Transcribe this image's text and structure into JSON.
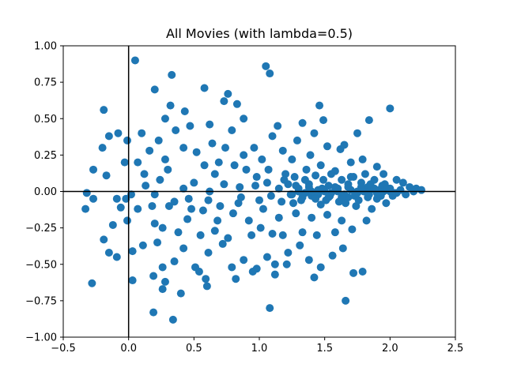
{
  "chart_data": {
    "type": "scatter",
    "title": "All Movies (with lambda=0.5)",
    "xlabel": "",
    "ylabel": "",
    "xlim": [
      -0.5,
      2.5
    ],
    "ylim": [
      -1.0,
      1.0
    ],
    "xticks": [
      "−0.5",
      "0.0",
      "0.5",
      "1.0",
      "1.5",
      "2.0",
      "2.5"
    ],
    "xtick_values": [
      -0.5,
      0.0,
      0.5,
      1.0,
      1.5,
      2.0,
      2.5
    ],
    "yticks": [
      "−1.00",
      "−0.75",
      "−0.50",
      "−0.25",
      "0.00",
      "0.25",
      "0.50",
      "0.75",
      "1.00"
    ],
    "ytick_values": [
      -1.0,
      -0.75,
      -0.5,
      -0.25,
      0.0,
      0.25,
      0.5,
      0.75,
      1.0
    ],
    "reference_lines": {
      "x": 0.0,
      "y": 0.0,
      "color": "#000000"
    },
    "grid": false,
    "marker_color": "#1f77b4",
    "series": [
      {
        "points": [
          [
            0.05,
            0.9
          ],
          [
            0.33,
            0.8
          ],
          [
            1.05,
            0.86
          ],
          [
            1.08,
            0.81
          ],
          [
            -0.19,
            0.56
          ],
          [
            0.2,
            0.7
          ],
          [
            0.58,
            0.71
          ],
          [
            0.73,
            0.62
          ],
          [
            0.76,
            0.67
          ],
          [
            0.83,
            0.6
          ],
          [
            1.46,
            0.59
          ],
          [
            2.0,
            0.57
          ],
          [
            1.84,
            0.49
          ],
          [
            1.75,
            0.4
          ],
          [
            0.32,
            0.59
          ],
          [
            0.43,
            0.55
          ],
          [
            0.28,
            0.5
          ],
          [
            0.88,
            0.5
          ],
          [
            1.14,
            0.45
          ],
          [
            1.33,
            0.47
          ],
          [
            1.49,
            0.49
          ],
          [
            -0.2,
            0.3
          ],
          [
            -0.15,
            0.38
          ],
          [
            -0.08,
            0.4
          ],
          [
            0.1,
            0.4
          ],
          [
            0.23,
            0.35
          ],
          [
            0.16,
            0.28
          ],
          [
            0.07,
            0.2
          ],
          [
            -0.03,
            0.2
          ],
          [
            -0.01,
            0.35
          ],
          [
            -0.27,
            0.15
          ],
          [
            -0.17,
            0.11
          ],
          [
            0.12,
            0.12
          ],
          [
            0.3,
            0.15
          ],
          [
            0.52,
            0.27
          ],
          [
            0.64,
            0.33
          ],
          [
            0.69,
            0.2
          ],
          [
            0.88,
            0.25
          ],
          [
            0.96,
            0.3
          ],
          [
            1.18,
            0.28
          ],
          [
            1.25,
            0.22
          ],
          [
            1.39,
            0.25
          ],
          [
            1.52,
            0.31
          ],
          [
            1.62,
            0.29
          ],
          [
            1.7,
            0.2
          ],
          [
            1.79,
            0.22
          ],
          [
            1.9,
            0.17
          ],
          [
            1.95,
            0.12
          ],
          [
            2.05,
            0.08
          ],
          [
            2.1,
            0.06
          ],
          [
            2.15,
            0.03
          ],
          [
            2.2,
            0.02
          ],
          [
            2.24,
            0.01
          ],
          [
            -0.32,
            -0.01
          ],
          [
            -0.33,
            -0.12
          ],
          [
            -0.27,
            -0.05
          ],
          [
            -0.09,
            -0.05
          ],
          [
            -0.02,
            -0.05
          ],
          [
            0.02,
            -0.02
          ],
          [
            0.13,
            0.04
          ],
          [
            0.24,
            0.08
          ],
          [
            0.42,
            0.02
          ],
          [
            0.5,
            0.06
          ],
          [
            0.62,
            0.0
          ],
          [
            0.73,
            0.05
          ],
          [
            0.85,
            0.03
          ],
          [
            0.97,
            0.04
          ],
          [
            1.06,
            0.06
          ],
          [
            1.15,
            0.02
          ],
          [
            1.22,
            0.05
          ],
          [
            1.3,
            0.02
          ],
          [
            1.38,
            0.05
          ],
          [
            1.45,
            0.01
          ],
          [
            1.53,
            0.04
          ],
          [
            1.6,
            0.02
          ],
          [
            1.68,
            0.03
          ],
          [
            1.75,
            0.0
          ],
          [
            1.83,
            0.03
          ],
          [
            1.92,
            0.01
          ],
          [
            2.0,
            0.02
          ],
          [
            -0.06,
            -0.11
          ],
          [
            -0.12,
            -0.23
          ],
          [
            -0.01,
            -0.2
          ],
          [
            0.07,
            -0.12
          ],
          [
            0.2,
            -0.22
          ],
          [
            0.31,
            -0.1
          ],
          [
            0.45,
            -0.19
          ],
          [
            0.57,
            -0.13
          ],
          [
            0.68,
            -0.2
          ],
          [
            0.8,
            -0.15
          ],
          [
            0.92,
            -0.2
          ],
          [
            1.03,
            -0.12
          ],
          [
            1.15,
            -0.18
          ],
          [
            1.28,
            -0.15
          ],
          [
            1.4,
            -0.18
          ],
          [
            1.52,
            -0.16
          ],
          [
            1.63,
            -0.2
          ],
          [
            1.74,
            -0.1
          ],
          [
            1.86,
            -0.12
          ],
          [
            1.97,
            -0.08
          ],
          [
            -0.19,
            -0.33
          ],
          [
            -0.15,
            -0.42
          ],
          [
            -0.09,
            -0.45
          ],
          [
            0.03,
            -0.41
          ],
          [
            0.11,
            -0.37
          ],
          [
            0.22,
            -0.35
          ],
          [
            0.26,
            -0.52
          ],
          [
            0.35,
            -0.48
          ],
          [
            0.42,
            -0.39
          ],
          [
            0.51,
            -0.52
          ],
          [
            0.61,
            -0.42
          ],
          [
            0.72,
            -0.36
          ],
          [
            0.79,
            -0.52
          ],
          [
            0.88,
            -0.47
          ],
          [
            0.98,
            -0.53
          ],
          [
            1.06,
            -0.45
          ],
          [
            1.12,
            -0.5
          ],
          [
            1.22,
            -0.42
          ],
          [
            1.31,
            -0.37
          ],
          [
            1.38,
            -0.47
          ],
          [
            1.47,
            -0.52
          ],
          [
            1.56,
            -0.44
          ],
          [
            1.64,
            -0.39
          ],
          [
            1.72,
            -0.56
          ],
          [
            1.79,
            -0.55
          ],
          [
            -0.28,
            -0.63
          ],
          [
            0.03,
            -0.61
          ],
          [
            0.19,
            -0.58
          ],
          [
            0.28,
            -0.62
          ],
          [
            0.59,
            -0.6
          ],
          [
            0.54,
            -0.55
          ],
          [
            0.82,
            -0.6
          ],
          [
            0.95,
            -0.55
          ],
          [
            1.12,
            -0.57
          ],
          [
            1.42,
            -0.59
          ],
          [
            1.21,
            -0.5
          ],
          [
            0.26,
            -0.67
          ],
          [
            0.4,
            -0.7
          ],
          [
            0.6,
            -0.65
          ],
          [
            0.19,
            -0.83
          ],
          [
            0.34,
            -0.88
          ],
          [
            1.08,
            -0.8
          ],
          [
            1.66,
            -0.75
          ],
          [
            0.18,
            -0.1
          ],
          [
            0.26,
            -0.25
          ],
          [
            0.38,
            -0.28
          ],
          [
            0.46,
            -0.05
          ],
          [
            0.55,
            -0.3
          ],
          [
            0.66,
            -0.27
          ],
          [
            0.76,
            -0.32
          ],
          [
            0.84,
            -0.08
          ],
          [
            0.94,
            -0.3
          ],
          [
            1.01,
            -0.25
          ],
          [
            1.1,
            -0.29
          ],
          [
            1.18,
            -0.3
          ],
          [
            1.26,
            -0.08
          ],
          [
            1.33,
            -0.28
          ],
          [
            1.44,
            -0.3
          ],
          [
            1.51,
            -0.06
          ],
          [
            1.58,
            -0.28
          ],
          [
            1.66,
            -0.08
          ],
          [
            1.71,
            -0.26
          ],
          [
            1.82,
            -0.2
          ],
          [
            1.9,
            -0.05
          ],
          [
            2.02,
            -0.03
          ],
          [
            0.47,
            0.45
          ],
          [
            0.62,
            0.46
          ],
          [
            0.79,
            0.42
          ],
          [
            0.9,
            0.15
          ],
          [
            1.02,
            0.22
          ],
          [
            1.1,
            0.38
          ],
          [
            1.2,
            0.12
          ],
          [
            1.29,
            0.35
          ],
          [
            1.36,
            0.15
          ],
          [
            1.42,
            0.4
          ],
          [
            1.47,
            0.18
          ],
          [
            1.58,
            0.14
          ],
          [
            1.65,
            0.32
          ],
          [
            1.72,
            0.1
          ],
          [
            1.81,
            0.12
          ],
          [
            1.88,
            0.08
          ],
          [
            1.96,
            0.05
          ],
          [
            2.08,
            0.01
          ],
          [
            0.36,
            0.42
          ],
          [
            0.28,
            0.22
          ],
          [
            0.42,
            0.3
          ],
          [
            0.58,
            0.18
          ],
          [
            0.66,
            0.12
          ],
          [
            0.74,
            0.3
          ],
          [
            0.81,
            0.18
          ],
          [
            0.98,
            0.1
          ],
          [
            1.07,
            0.15
          ],
          [
            1.19,
            0.08
          ],
          [
            1.27,
            0.1
          ],
          [
            1.35,
            0.08
          ],
          [
            1.43,
            0.11
          ],
          [
            1.49,
            0.08
          ],
          [
            1.55,
            0.12
          ],
          [
            1.63,
            0.08
          ],
          [
            1.7,
            0.1
          ],
          [
            1.78,
            0.06
          ],
          [
            1.85,
            0.05
          ],
          [
            1.94,
            0.04
          ],
          [
            0.2,
            -0.02
          ],
          [
            0.35,
            -0.07
          ],
          [
            0.48,
            -0.12
          ],
          [
            0.61,
            -0.06
          ],
          [
            0.7,
            -0.1
          ],
          [
            0.86,
            -0.04
          ],
          [
            1.0,
            -0.06
          ],
          [
            1.09,
            -0.03
          ],
          [
            1.17,
            -0.07
          ],
          [
            1.24,
            -0.02
          ],
          [
            1.32,
            -0.06
          ],
          [
            1.4,
            -0.03
          ],
          [
            1.47,
            -0.09
          ],
          [
            1.54,
            -0.03
          ],
          [
            1.61,
            -0.07
          ],
          [
            1.68,
            -0.04
          ],
          [
            1.76,
            -0.06
          ],
          [
            1.84,
            -0.02
          ],
          [
            1.93,
            -0.03
          ],
          [
            2.05,
            -0.01
          ],
          [
            2.12,
            -0.02
          ],
          [
            2.18,
            0.0
          ],
          [
            1.25,
            -0.02
          ],
          [
            1.3,
            0.0
          ],
          [
            1.35,
            -0.01
          ],
          [
            1.4,
            0.0
          ],
          [
            1.45,
            -0.02
          ],
          [
            1.5,
            0.0
          ],
          [
            1.55,
            -0.01
          ],
          [
            1.6,
            0.0
          ],
          [
            1.65,
            -0.02
          ],
          [
            1.7,
            0.01
          ],
          [
            1.75,
            -0.01
          ],
          [
            1.8,
            0.0
          ],
          [
            1.85,
            0.01
          ],
          [
            1.9,
            -0.01
          ],
          [
            1.95,
            0.0
          ],
          [
            2.0,
            0.0
          ],
          [
            1.28,
            0.04
          ],
          [
            1.33,
            -0.04
          ],
          [
            1.38,
            0.03
          ],
          [
            1.43,
            -0.05
          ],
          [
            1.48,
            0.02
          ],
          [
            1.53,
            -0.04
          ],
          [
            1.58,
            0.03
          ],
          [
            1.63,
            -0.04
          ],
          [
            1.68,
            0.05
          ],
          [
            1.73,
            -0.03
          ],
          [
            1.78,
            0.03
          ],
          [
            1.83,
            -0.04
          ],
          [
            1.88,
            0.02
          ],
          [
            1.93,
            -0.02
          ],
          [
            1.98,
            0.02
          ],
          [
            2.03,
            -0.01
          ]
        ]
      }
    ]
  }
}
